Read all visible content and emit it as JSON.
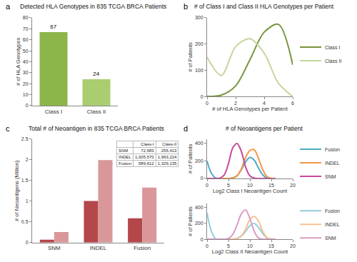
{
  "chart_data": [
    {
      "label": "a",
      "type": "bar",
      "title": "Detected HLA Genotypes in 835 TCGA BRCA Patients",
      "categories": [
        "Class I",
        "Class II"
      ],
      "values": [
        67,
        24
      ],
      "colors": [
        "#8cb54a",
        "#aacd70"
      ],
      "y_label": "# of HLA Genotypes",
      "ylim": [
        0,
        80
      ],
      "yticks": [
        0,
        10,
        20,
        30,
        40,
        50,
        60,
        70,
        80
      ],
      "data_labels": true,
      "grid": false,
      "legend": false
    },
    {
      "label": "b",
      "type": "line",
      "title": "# of Class I and Class II HLA Genotypes per Patient",
      "x": [
        0,
        1,
        2,
        3,
        4,
        5,
        6
      ],
      "series": [
        {
          "name": "Class I",
          "color": "#77933c",
          "values": [
            0,
            5,
            40,
            140,
            245,
            275,
            120
          ]
        },
        {
          "name": "Class II",
          "color": "#c3d69b",
          "values": [
            150,
            80,
            190,
            220,
            165,
            50,
            0
          ]
        }
      ],
      "x_label": "# of HLA Genotypes per Patient",
      "y_label": "# of Patients",
      "xlim": [
        0,
        6
      ],
      "xticks": [
        0,
        2,
        4,
        6
      ],
      "ylim": [
        0,
        300
      ],
      "yticks": [
        0,
        100,
        200,
        300
      ],
      "grid": false,
      "legend": "right",
      "line_style": "solid"
    },
    {
      "label": "c",
      "type": "bar",
      "title": "Total # of Neoantigen in 835 TCGA BRCA Patients",
      "categories": [
        "SNM",
        "INDEL",
        "Fusion"
      ],
      "series": [
        {
          "name": "Class-I",
          "color": "#b3474a",
          "values": [
            0.072683,
            1.00557,
            0.589612
          ]
        },
        {
          "name": "Class-II",
          "color": "#d9979a",
          "values": [
            0.255413,
            1.993224,
            1.329135
          ]
        }
      ],
      "y_label": "# of Neoantigens (Million)",
      "ylim": [
        0,
        2.5
      ],
      "yticks": [
        0,
        0.5,
        1,
        1.5,
        2,
        2.5
      ],
      "grid": false,
      "legend": false,
      "table": {
        "header": [
          "Class-I",
          "Class-II"
        ],
        "rows": [
          [
            "SNM",
            "72,683",
            "255,413"
          ],
          [
            "INDEL",
            "1,005,570",
            "1,993,224"
          ],
          [
            "Fusion",
            "589,612",
            "1,329,135"
          ]
        ]
      }
    },
    {
      "label": "d",
      "type": "line",
      "title": "# of Neoantigens per Patient",
      "x": [
        0,
        1,
        2,
        3,
        4,
        5,
        6,
        7,
        8,
        9,
        10,
        11,
        12,
        13,
        14,
        15,
        16
      ],
      "series": [
        {
          "name": "Fusion",
          "color": "#4bacc6",
          "values": [
            200,
            60,
            5,
            0,
            0,
            0,
            5,
            30,
            100,
            190,
            240,
            210,
            120,
            40,
            5,
            0,
            0
          ]
        },
        {
          "name": "INDEL",
          "color": "#f79646",
          "values": [
            0,
            0,
            0,
            0,
            0,
            0,
            5,
            30,
            110,
            240,
            320,
            330,
            230,
            100,
            20,
            2,
            0
          ]
        },
        {
          "name": "SNM",
          "color": "#c8499a",
          "values": [
            0,
            0,
            0,
            5,
            40,
            170,
            350,
            400,
            310,
            130,
            30,
            3,
            0,
            0,
            0,
            0,
            0
          ]
        }
      ],
      "x_label": "Log2 Class I Neoantigen Count",
      "y_label": "# of Patients",
      "xlim": [
        0,
        20
      ],
      "xticks": [
        0,
        5,
        10,
        15,
        20
      ],
      "ylim": [
        0,
        450
      ],
      "yticks": [
        0,
        200,
        400
      ],
      "grid": false,
      "legend": "right",
      "line_style": "solid"
    },
    {
      "type": "line",
      "x": [
        0,
        1,
        2,
        3,
        4,
        5,
        6,
        7,
        8,
        9,
        10,
        11,
        12,
        13,
        14,
        15,
        16
      ],
      "series": [
        {
          "name": "Fusion",
          "color": "#93cddd",
          "values": [
            330,
            100,
            5,
            0,
            0,
            0,
            0,
            10,
            40,
            100,
            170,
            200,
            150,
            70,
            15,
            0,
            0
          ]
        },
        {
          "name": "INDEL",
          "color": "#fac090",
          "values": [
            0,
            0,
            0,
            0,
            0,
            0,
            0,
            5,
            40,
            130,
            250,
            290,
            230,
            100,
            20,
            0,
            0
          ]
        },
        {
          "name": "SNM",
          "color": "#dc9cc6",
          "values": [
            0,
            0,
            0,
            0,
            0,
            10,
            60,
            180,
            320,
            370,
            260,
            100,
            15,
            0,
            0,
            0,
            0
          ]
        }
      ],
      "x_label": "Log2 Class II Neoantigen Count",
      "y_label": "# of Patients",
      "xlim": [
        0,
        20
      ],
      "xticks": [
        0,
        5,
        10,
        15,
        20
      ],
      "ylim": [
        0,
        450
      ],
      "yticks": [
        0,
        200,
        400
      ],
      "grid": false,
      "legend": "right",
      "line_style": "solid"
    }
  ]
}
